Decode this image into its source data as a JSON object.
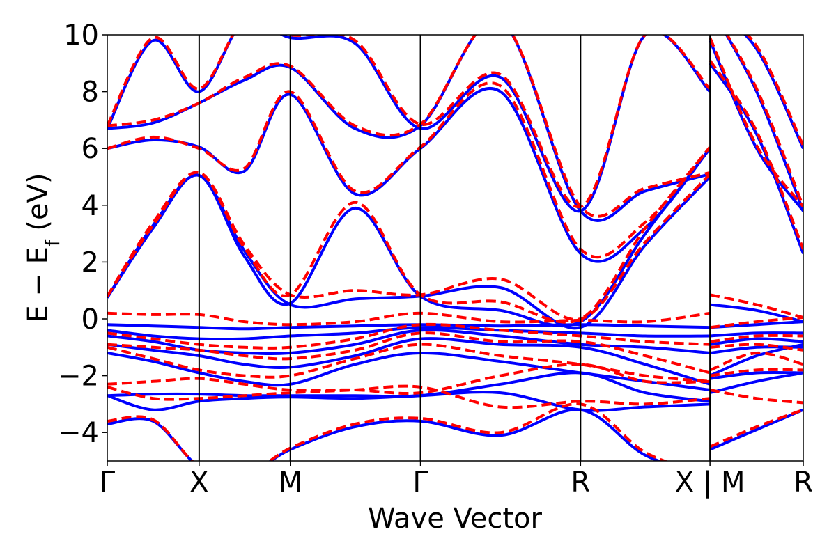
{
  "chart_data": {
    "type": "line",
    "xlabel": "Wave Vector",
    "ylabel": "E − E",
    "ylabel_sub": "f",
    "ylabel_unit": " (eV)",
    "ylim": [
      -5,
      10
    ],
    "yticks": [
      -4,
      -2,
      0,
      2,
      4,
      6,
      8,
      10
    ],
    "ytick_labels": [
      "−4",
      "−2",
      "0",
      "2",
      "4",
      "6",
      "8",
      "10"
    ],
    "kpoints": [
      {
        "label": "Γ",
        "x": 0
      },
      {
        "label": "X",
        "x": 0.132
      },
      {
        "label": "M",
        "x": 0.263
      },
      {
        "label": "Γ",
        "x": 0.45
      },
      {
        "label": "R",
        "x": 0.68
      },
      {
        "label": "X | M",
        "x": 0.866
      },
      {
        "label": "R",
        "x": 1.0
      }
    ],
    "grid": false,
    "series": [
      {
        "color": "#0000ff",
        "dash": "solid",
        "bands": [
          {
            "x": [
              0,
              0.066,
              0.132,
              0.197,
              0.263,
              0.356,
              0.45,
              0.565,
              0.68,
              0.773,
              0.866,
              0.866,
              0.933,
              1.0
            ],
            "y": [
              -3.7,
              -3.6,
              -5.2,
              -5.5,
              -4.6,
              -3.8,
              -3.6,
              -4.1,
              -3.2,
              -4.8,
              -5.5,
              -4.6,
              -3.9,
              -3.2
            ]
          },
          {
            "x": [
              0,
              0.066,
              0.132,
              0.197,
              0.263,
              0.356,
              0.45,
              0.565,
              0.68,
              0.773,
              0.866,
              0.866,
              0.933,
              1.0
            ],
            "y": [
              -2.7,
              -3.2,
              -2.9,
              -2.8,
              -2.75,
              -2.8,
              -2.7,
              -2.6,
              -3.2,
              -3.1,
              -3.0,
              -2.6,
              -2.2,
              -1.9
            ]
          },
          {
            "x": [
              0,
              0.066,
              0.132,
              0.197,
              0.263,
              0.356,
              0.45,
              0.565,
              0.68,
              0.773,
              0.866,
              0.866,
              0.933,
              1.0
            ],
            "y": [
              -2.7,
              -2.65,
              -2.65,
              -2.7,
              -2.7,
              -2.7,
              -2.7,
              -2.3,
              -1.9,
              -2.6,
              -2.9,
              -2.1,
              -1.9,
              -1.9
            ]
          },
          {
            "x": [
              0,
              0.066,
              0.132,
              0.197,
              0.263,
              0.356,
              0.45,
              0.565,
              0.68,
              0.773,
              0.866,
              0.866,
              0.933,
              1.0
            ],
            "y": [
              -1.2,
              -1.5,
              -1.9,
              -2.2,
              -2.3,
              -1.6,
              -1.2,
              -1.5,
              -1.9,
              -2.2,
              -2.5,
              -2.0,
              -1.3,
              -0.9
            ]
          },
          {
            "x": [
              0,
              0.066,
              0.132,
              0.197,
              0.263,
              0.356,
              0.45,
              0.565,
              0.68,
              0.773,
              0.866,
              0.866,
              0.933,
              1.0
            ],
            "y": [
              -0.9,
              -1.1,
              -1.3,
              -1.6,
              -1.7,
              -1.3,
              -0.7,
              -0.9,
              -1.0,
              -1.6,
              -2.3,
              -1.2,
              -1.0,
              -1.0
            ]
          },
          {
            "x": [
              0,
              0.066,
              0.132,
              0.197,
              0.263,
              0.356,
              0.45,
              0.565,
              0.68,
              0.773,
              0.866,
              0.866,
              0.933,
              1.0
            ],
            "y": [
              -0.6,
              -0.8,
              -1.1,
              -1.2,
              -1.2,
              -0.9,
              -0.4,
              -0.6,
              -0.9,
              -1.0,
              -1.2,
              -0.9,
              -0.7,
              -0.8
            ]
          },
          {
            "x": [
              0,
              0.066,
              0.132,
              0.197,
              0.263,
              0.356,
              0.45,
              0.565,
              0.68,
              0.773,
              0.866,
              0.866,
              0.933,
              1.0
            ],
            "y": [
              -0.4,
              -0.6,
              -0.7,
              -0.7,
              -0.6,
              -0.5,
              -0.3,
              -0.4,
              -0.5,
              -0.6,
              -0.6,
              -0.6,
              -0.5,
              -0.5
            ]
          },
          {
            "x": [
              0,
              0.066,
              0.132,
              0.197,
              0.263,
              0.356,
              0.45,
              0.565,
              0.68,
              0.773,
              0.866,
              0.866,
              0.933,
              1.0
            ],
            "y": [
              -0.2,
              -0.25,
              -0.3,
              -0.35,
              -0.3,
              -0.25,
              -0.2,
              -0.25,
              -0.2,
              -0.25,
              -0.3,
              -0.3,
              -0.2,
              -0.1
            ]
          },
          {
            "x": [
              0,
              0.066,
              0.132,
              0.197,
              0.263,
              0.356,
              0.45,
              0.565,
              0.68,
              0.773,
              0.866,
              0.866,
              0.933,
              1.0
            ],
            "y": [
              0.75,
              3.3,
              5.05,
              2.4,
              0.5,
              0.7,
              0.8,
              1.1,
              -0.3,
              2.6,
              5.0,
              0.5,
              0.3,
              -0.1
            ]
          },
          {
            "x": [
              0,
              0.066,
              0.132,
              0.197,
              0.263,
              0.356,
              0.45,
              0.565,
              0.68,
              0.773,
              0.866,
              0.866,
              0.933,
              1.0
            ],
            "y": [
              0.75,
              3.2,
              5.05,
              2.2,
              0.55,
              3.9,
              0.8,
              0.3,
              -0.1,
              3.0,
              6.0,
              9.0,
              6.5,
              2.3
            ]
          },
          {
            "x": [
              0,
              0.066,
              0.132,
              0.197,
              0.263,
              0.356,
              0.45,
              0.565,
              0.68,
              0.773,
              0.866,
              0.866,
              0.933,
              1.0
            ],
            "y": [
              6.0,
              6.3,
              6.05,
              5.2,
              7.9,
              4.4,
              6.0,
              8.0,
              2.3,
              3.2,
              6.0,
              9.8,
              6.0,
              3.8
            ]
          },
          {
            "x": [
              0,
              0.066,
              0.132,
              0.197,
              0.263,
              0.356,
              0.45,
              0.565,
              0.68,
              0.773,
              0.866,
              0.866,
              0.933,
              1.0
            ],
            "y": [
              6.7,
              6.9,
              7.6,
              8.4,
              8.85,
              6.7,
              6.8,
              10.5,
              3.8,
              4.5,
              5.1,
              11.0,
              8.0,
              3.8
            ]
          },
          {
            "x": [
              0,
              0.066,
              0.132,
              0.197,
              0.263,
              0.356,
              0.45,
              0.565,
              0.68,
              0.773,
              0.866,
              0.866,
              0.933,
              1.0
            ],
            "y": [
              6.7,
              9.8,
              8.0,
              10.5,
              9.9,
              9.7,
              6.7,
              8.5,
              3.8,
              10.0,
              8.0,
              11.0,
              9.5,
              6.0
            ]
          }
        ]
      },
      {
        "color": "#ff0000",
        "dash": "dashed",
        "bands": [
          {
            "x": [
              0,
              0.066,
              0.132,
              0.197,
              0.263,
              0.356,
              0.45,
              0.565,
              0.68,
              0.773,
              0.866,
              0.866,
              0.933,
              1.0
            ],
            "y": [
              -3.6,
              -3.55,
              -5.2,
              -5.5,
              -4.55,
              -3.7,
              -3.5,
              -4.0,
              -3.0,
              -4.7,
              -5.5,
              -4.5,
              -3.8,
              -3.2
            ]
          },
          {
            "x": [
              0,
              0.066,
              0.132,
              0.197,
              0.263,
              0.356,
              0.45,
              0.565,
              0.68,
              0.773,
              0.866,
              0.866,
              0.933,
              1.0
            ],
            "y": [
              -2.4,
              -2.8,
              -2.8,
              -2.7,
              -2.6,
              -2.5,
              -2.4,
              -3.1,
              -2.9,
              -3.0,
              -2.8,
              -2.5,
              -2.8,
              -2.95
            ]
          },
          {
            "x": [
              0,
              0.066,
              0.132,
              0.197,
              0.263,
              0.356,
              0.45,
              0.565,
              0.68,
              0.773,
              0.866,
              0.866,
              0.933,
              1.0
            ],
            "y": [
              -2.3,
              -2.2,
              -2.1,
              -2.3,
              -2.5,
              -2.5,
              -2.6,
              -2.0,
              -1.6,
              -2.2,
              -2.2,
              -2.0,
              -1.8,
              -1.8
            ]
          },
          {
            "x": [
              0,
              0.066,
              0.132,
              0.197,
              0.263,
              0.356,
              0.45,
              0.565,
              0.68,
              0.773,
              0.866,
              0.866,
              0.933,
              1.0
            ],
            "y": [
              -1.0,
              -1.4,
              -1.8,
              -2.0,
              -2.0,
              -1.4,
              -0.9,
              -1.3,
              -1.6,
              -2.0,
              -2.2,
              -1.8,
              -1.2,
              -1.6
            ]
          },
          {
            "x": [
              0,
              0.066,
              0.132,
              0.197,
              0.263,
              0.356,
              0.45,
              0.565,
              0.68,
              0.773,
              0.866,
              0.866,
              0.933,
              1.0
            ],
            "y": [
              -0.9,
              -1.0,
              -1.1,
              -1.3,
              -1.4,
              -1.1,
              -0.5,
              -0.8,
              -0.8,
              -1.3,
              -1.9,
              -1.0,
              -0.9,
              -1.1
            ]
          },
          {
            "x": [
              0,
              0.066,
              0.132,
              0.197,
              0.263,
              0.356,
              0.45,
              0.565,
              0.68,
              0.773,
              0.866,
              0.866,
              0.933,
              1.0
            ],
            "y": [
              -0.5,
              -0.7,
              -0.9,
              -1.0,
              -1.0,
              -0.7,
              -0.2,
              -0.4,
              -0.6,
              -0.8,
              -0.9,
              -0.8,
              -0.6,
              -0.6
            ]
          },
          {
            "x": [
              0,
              0.066,
              0.132,
              0.197,
              0.263,
              0.356,
              0.45,
              0.565,
              0.68,
              0.773,
              0.866,
              0.866,
              0.933,
              1.0
            ],
            "y": [
              0.2,
              0.15,
              0.15,
              -0.1,
              -0.2,
              -0.1,
              0.2,
              -0.1,
              -0.05,
              -0.1,
              0.2,
              -0.3,
              -0.1,
              0.05
            ]
          },
          {
            "x": [
              0,
              0.066,
              0.132,
              0.197,
              0.263,
              0.356,
              0.45,
              0.565,
              0.68,
              0.773,
              0.866,
              0.866,
              0.933,
              1.0
            ],
            "y": [
              0.8,
              3.4,
              5.15,
              2.6,
              0.85,
              1.0,
              0.85,
              1.4,
              0.0,
              2.7,
              5.1,
              0.85,
              0.5,
              0.05
            ]
          },
          {
            "x": [
              0,
              0.066,
              0.132,
              0.197,
              0.263,
              0.356,
              0.45,
              0.565,
              0.68,
              0.773,
              0.866,
              0.866,
              0.933,
              1.0
            ],
            "y": [
              0.8,
              3.3,
              5.15,
              2.5,
              0.85,
              4.1,
              0.85,
              0.6,
              0.0,
              3.2,
              6.05,
              9.1,
              6.6,
              2.45
            ]
          },
          {
            "x": [
              0,
              0.066,
              0.132,
              0.197,
              0.263,
              0.356,
              0.45,
              0.565,
              0.68,
              0.773,
              0.866,
              0.866,
              0.933,
              1.0
            ],
            "y": [
              6.0,
              6.4,
              6.0,
              5.3,
              8.0,
              4.5,
              6.05,
              8.2,
              2.45,
              3.4,
              6.05,
              9.9,
              6.1,
              3.95
            ]
          },
          {
            "x": [
              0,
              0.066,
              0.132,
              0.197,
              0.263,
              0.356,
              0.45,
              0.565,
              0.68,
              0.773,
              0.866,
              0.866,
              0.933,
              1.0
            ],
            "y": [
              6.8,
              7.0,
              7.6,
              8.5,
              8.9,
              6.8,
              6.85,
              10.5,
              3.95,
              4.6,
              5.15,
              11.0,
              8.1,
              3.95
            ]
          },
          {
            "x": [
              0,
              0.066,
              0.132,
              0.197,
              0.263,
              0.356,
              0.45,
              0.565,
              0.68,
              0.773,
              0.866,
              0.866,
              0.933,
              1.0
            ],
            "y": [
              6.8,
              9.9,
              8.1,
              10.5,
              10.0,
              9.8,
              6.85,
              8.6,
              3.95,
              10.0,
              8.1,
              11.0,
              9.6,
              6.1
            ]
          }
        ]
      }
    ]
  }
}
